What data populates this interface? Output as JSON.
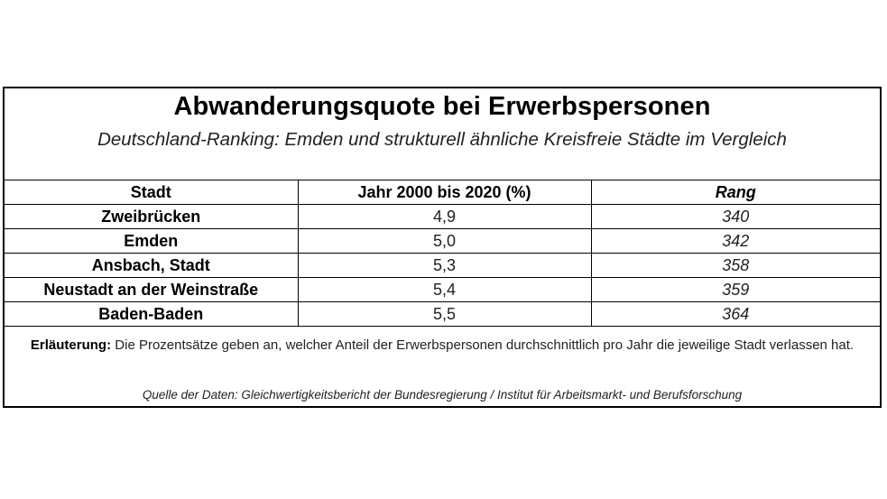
{
  "title": "Abwanderungsquote bei Erwerbspersonen",
  "subtitle": "Deutschland-Ranking: Emden und strukturell ähnliche Kreisfreie Städte im Vergleich",
  "table": {
    "headers": [
      "Stadt",
      "Jahr 2000 bis 2020 (%)",
      "Rang"
    ],
    "rows": [
      {
        "city": "Zweibrücken",
        "value": "4,9",
        "rank": "340"
      },
      {
        "city": "Emden",
        "value": "5,0",
        "rank": "342"
      },
      {
        "city": "Ansbach, Stadt",
        "value": "5,3",
        "rank": "358"
      },
      {
        "city": "Neustadt an der Weinstraße",
        "value": "5,4",
        "rank": "359"
      },
      {
        "city": "Baden-Baden",
        "value": "5,5",
        "rank": "364"
      }
    ]
  },
  "note": {
    "label": "Erläuterung:",
    "text": "Die Prozentsätze geben an, welcher Anteil der Erwerbspersonen durchschnittlich pro Jahr die jeweilige Stadt verlassen hat."
  },
  "source": "Quelle der Daten: Gleichwertigkeitsbericht der Bundesregierung / Institut für Arbeitsmarkt- und Berufsforschung"
}
